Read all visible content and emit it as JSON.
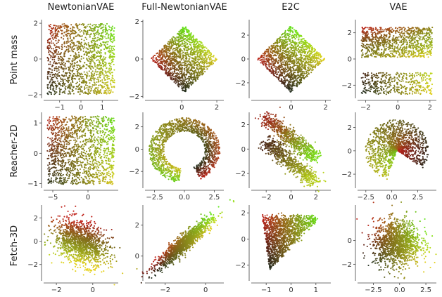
{
  "columns": [
    "NewtonianVAE",
    "Full-NewtonianVAE",
    "E2C",
    "VAE"
  ],
  "rows": [
    "Point mass",
    "Reacher-2D",
    "Fetch-3D"
  ],
  "colors": {
    "green": "#5ee81a",
    "yellow": "#e6d21e",
    "red": "#c0231b",
    "dark": "#1c2a1c"
  },
  "chart_data": {
    "type": "scatter",
    "title": "",
    "point_color_scheme": [
      "#1c2a1c",
      "#c0231b",
      "#e6d21e",
      "#5ee81a"
    ],
    "panels": [
      {
        "row": "Point mass",
        "column": "NewtonianVAE",
        "shape": "square",
        "xlim": [
          -1.75,
          1.75
        ],
        "ylim": [
          -2.2,
          2.2
        ],
        "xticks": [
          -1,
          0,
          1
        ],
        "xtick_labels": [
          "−1",
          "0",
          "1"
        ],
        "yticks": [
          -2,
          0,
          2
        ],
        "ytick_labels": [
          "−2",
          "0",
          "2"
        ]
      },
      {
        "row": "Point mass",
        "column": "Full-NewtonianVAE",
        "shape": "diamond",
        "xlim": [
          -2.1,
          2.4
        ],
        "ylim": [
          -2.1,
          2.1
        ],
        "xticks": [
          0,
          2
        ],
        "xtick_labels": [
          "0",
          "2"
        ],
        "yticks": [
          -2,
          0,
          2
        ],
        "ytick_labels": [
          "−2",
          "0",
          "2"
        ]
      },
      {
        "row": "Point mass",
        "column": "E2C",
        "shape": "diamond",
        "xlim": [
          -2.3,
          2.3
        ],
        "ylim": [
          -3.3,
          3.3
        ],
        "xticks": [
          0,
          2
        ],
        "xtick_labels": [
          "0",
          "2"
        ],
        "yticks": [
          -2,
          0,
          2
        ],
        "ytick_labels": [
          "−2",
          "0",
          "2"
        ]
      },
      {
        "row": "Point mass",
        "column": "VAE",
        "shape": "split_band",
        "xlim": [
          -2.5,
          2.4
        ],
        "ylim": [
          -3.0,
          3.0
        ],
        "xticks": [
          -2,
          0,
          2
        ],
        "xtick_labels": [
          "−2",
          "0",
          "2"
        ],
        "yticks": [
          -2,
          0,
          2
        ],
        "ytick_labels": [
          "−2",
          "0",
          "2"
        ]
      },
      {
        "row": "Reacher-2D",
        "column": "NewtonianVAE",
        "shape": "square",
        "xlim": [
          -6.3,
          4.3
        ],
        "ylim": [
          -1.15,
          1.35
        ],
        "xticks": [
          -5,
          0
        ],
        "xtick_labels": [
          "−5",
          "0"
        ],
        "yticks": [
          -1,
          0,
          1
        ],
        "ytick_labels": [
          "−1",
          "0",
          "1"
        ]
      },
      {
        "row": "Reacher-2D",
        "column": "Full-NewtonianVAE",
        "shape": "crescent",
        "xlim": [
          -3.3,
          3.3
        ],
        "ylim": [
          -3.5,
          3.3
        ],
        "xticks": [
          -2.5,
          0,
          2.5
        ],
        "xtick_labels": [
          "−2.5",
          "0.0",
          "2.5"
        ],
        "yticks": [
          -2,
          0,
          2
        ],
        "ytick_labels": [
          "−2",
          "0",
          "2"
        ]
      },
      {
        "row": "Reacher-2D",
        "column": "E2C",
        "shape": "folded",
        "xlim": [
          -3.2,
          3.2
        ],
        "ylim": [
          -3.2,
          3.0
        ],
        "xticks": [
          -2,
          0,
          2
        ],
        "xtick_labels": [
          "−2",
          "0",
          "2"
        ],
        "yticks": [
          -2,
          0,
          2
        ],
        "ytick_labels": [
          "−2",
          "0",
          "2"
        ]
      },
      {
        "row": "Reacher-2D",
        "column": "VAE",
        "shape": "fan",
        "xlim": [
          -3.3,
          4.3
        ],
        "ylim": [
          -3.2,
          3.3
        ],
        "xticks": [
          -2.5,
          0,
          2.5
        ],
        "xtick_labels": [
          "−2.5",
          "0.0",
          "2.5"
        ],
        "yticks": [
          -2,
          0,
          2
        ],
        "ytick_labels": [
          "−2",
          "0",
          "2"
        ]
      },
      {
        "row": "Fetch-3D",
        "column": "NewtonianVAE",
        "shape": "gauss_tilt",
        "xlim": [
          -2.7,
          1.4
        ],
        "ylim": [
          -3.4,
          3.1
        ],
        "xticks": [
          -2,
          0
        ],
        "xtick_labels": [
          "−2",
          "0"
        ],
        "yticks": [
          -2,
          0,
          2
        ],
        "ytick_labels": [
          "−2",
          "0",
          "2"
        ]
      },
      {
        "row": "Fetch-3D",
        "column": "Full-NewtonianVAE",
        "shape": "gauss_diag",
        "xlim": [
          -3.0,
          0.9
        ],
        "ylim": [
          -1.6,
          3.3
        ],
        "xticks": [
          -2,
          0
        ],
        "xtick_labels": [
          "−2",
          "0"
        ],
        "yticks": [
          0,
          2
        ],
        "ytick_labels": [
          "0",
          "2"
        ]
      },
      {
        "row": "Fetch-3D",
        "column": "E2C",
        "shape": "triangle",
        "xlim": [
          -1.6,
          1.6
        ],
        "ylim": [
          -3.2,
          2.6
        ],
        "xticks": [
          -1,
          0,
          1
        ],
        "xtick_labels": [
          "−1",
          "0",
          "1"
        ],
        "yticks": [
          -2,
          0,
          2
        ],
        "ytick_labels": [
          "−2",
          "0",
          "2"
        ]
      },
      {
        "row": "Fetch-3D",
        "column": "VAE",
        "shape": "gauss_round",
        "xlim": [
          -4.0,
          3.5
        ],
        "ylim": [
          -3.4,
          3.0
        ],
        "xticks": [
          -2.5,
          0,
          2.5
        ],
        "xtick_labels": [
          "−2.5",
          "0.0",
          "2.5"
        ],
        "yticks": [
          -2,
          0
        ],
        "ytick_labels": [
          "−2",
          "0"
        ]
      }
    ]
  }
}
